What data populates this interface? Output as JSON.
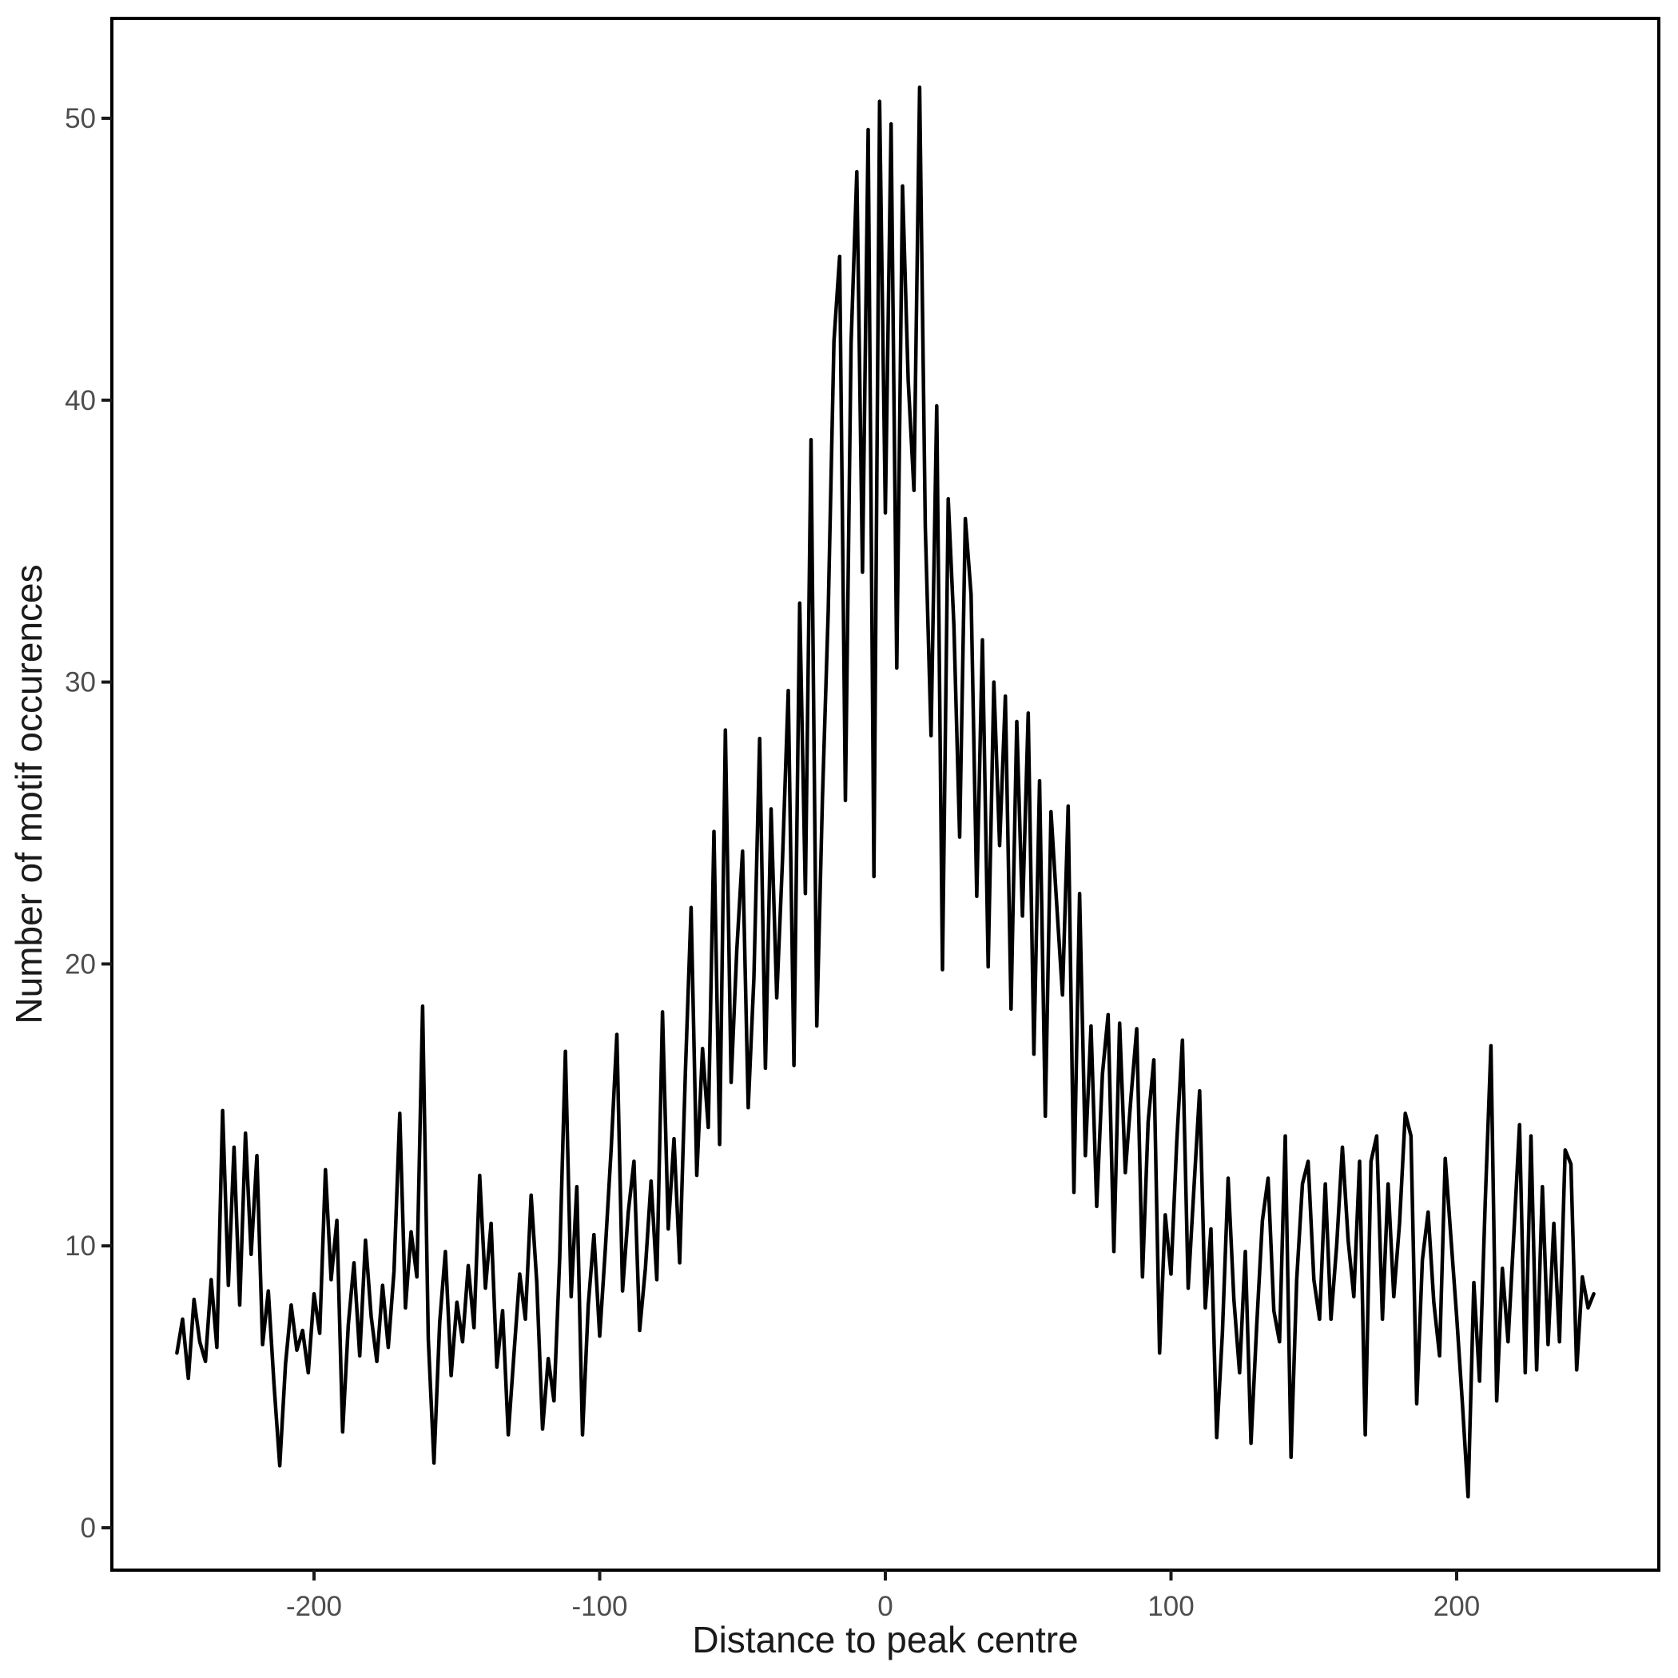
{
  "figure": {
    "background": "#ffffff",
    "line_color": "#000000",
    "border_color": "#000000",
    "tick_color": "#1a1a1a",
    "tick_label_color": "#4d4d4d",
    "title_color": "#1a1a1a"
  },
  "chart_data": {
    "type": "line",
    "title": "",
    "xlabel": "Distance to peak centre",
    "ylabel": "Number of motif occurences",
    "legend": null,
    "grid": false,
    "x_ticks": [
      -200,
      -100,
      0,
      100,
      200
    ],
    "y_ticks": [
      0,
      10,
      20,
      30,
      40,
      50
    ],
    "xlim": [
      -270.7,
      270.7
    ],
    "ylim": [
      -1.5,
      53.5
    ],
    "x_start": -248,
    "x_step": 2,
    "x_end": 248,
    "y": [
      6.2,
      7.4,
      5.3,
      8.1,
      6.6,
      5.9,
      8.8,
      6.4,
      14.8,
      8.6,
      13.5,
      7.9,
      14.0,
      9.7,
      13.2,
      6.5,
      8.4,
      5.1,
      2.2,
      5.8,
      7.9,
      6.3,
      7.0,
      5.5,
      8.3,
      6.9,
      12.7,
      8.8,
      10.9,
      3.4,
      7.2,
      9.4,
      6.1,
      10.2,
      7.5,
      5.9,
      8.6,
      6.4,
      9.1,
      14.7,
      7.8,
      10.5,
      8.9,
      18.5,
      6.7,
      2.3,
      7.3,
      9.8,
      5.4,
      8.0,
      6.6,
      9.3,
      7.1,
      12.5,
      8.5,
      10.8,
      5.7,
      7.7,
      3.3,
      6.2,
      9.0,
      7.4,
      11.8,
      8.7,
      3.5,
      6.0,
      4.5,
      9.6,
      16.9,
      8.2,
      12.1,
      3.3,
      7.9,
      10.4,
      6.8,
      9.9,
      13.4,
      17.5,
      8.4,
      11.2,
      13.0,
      7.0,
      9.2,
      12.3,
      8.8,
      18.3,
      10.6,
      13.8,
      9.4,
      16.2,
      22.0,
      12.5,
      17.0,
      14.2,
      24.7,
      13.6,
      28.3,
      15.8,
      20.5,
      24.0,
      14.9,
      19.5,
      28.0,
      16.3,
      25.5,
      18.8,
      23.7,
      29.7,
      16.4,
      32.8,
      22.5,
      38.6,
      17.8,
      25.9,
      32.5,
      42.1,
      45.1,
      25.8,
      42.0,
      48.1,
      33.9,
      49.6,
      23.1,
      50.6,
      36.0,
      49.8,
      30.5,
      47.6,
      40.7,
      36.8,
      51.1,
      35.5,
      28.1,
      39.8,
      19.8,
      36.5,
      32.0,
      24.5,
      35.8,
      33.1,
      22.4,
      31.5,
      19.9,
      30.0,
      24.2,
      29.5,
      18.4,
      28.6,
      21.7,
      28.9,
      16.8,
      26.5,
      14.6,
      25.4,
      22.1,
      18.9,
      25.6,
      11.9,
      22.5,
      13.2,
      17.8,
      11.4,
      16.1,
      18.2,
      9.8,
      17.9,
      12.6,
      15.3,
      17.7,
      8.9,
      14.4,
      16.6,
      6.2,
      11.1,
      9.0,
      13.7,
      17.3,
      8.5,
      12.0,
      15.5,
      7.8,
      10.6,
      3.2,
      6.9,
      12.4,
      8.1,
      5.5,
      9.8,
      3.0,
      7.2,
      10.9,
      12.4,
      7.7,
      6.6,
      13.9,
      2.5,
      8.8,
      12.2,
      13.0,
      8.8,
      7.4,
      12.2,
      7.4,
      10.0,
      13.5,
      10.2,
      8.2,
      13.0,
      3.3,
      13.0,
      13.9,
      7.4,
      12.2,
      8.2,
      10.8,
      14.7,
      13.9,
      4.4,
      9.5,
      11.2,
      8.0,
      6.1,
      13.1,
      10.3,
      7.5,
      4.4,
      1.1,
      8.7,
      5.2,
      11.6,
      17.1,
      4.5,
      9.2,
      6.6,
      10.4,
      14.3,
      5.5,
      13.9,
      5.6,
      12.1,
      6.5,
      10.8,
      6.6,
      13.4,
      12.9,
      5.6,
      8.9,
      7.8,
      8.3
    ]
  }
}
